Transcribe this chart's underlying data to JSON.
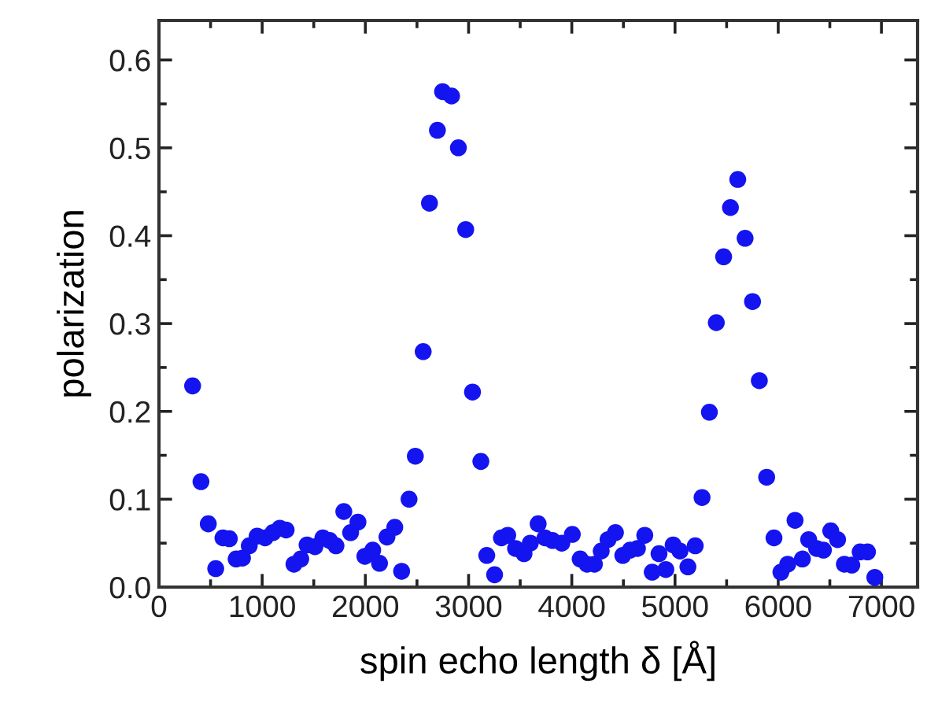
{
  "chart_data": {
    "type": "scatter",
    "xlabel": "spin echo length δ [Å]",
    "ylabel": "polarization",
    "x": [
      326,
      407,
      478,
      550,
      620,
      682,
      748,
      809,
      875,
      951,
      1028,
      1104,
      1171,
      1232,
      1308,
      1374,
      1435,
      1511,
      1588,
      1654,
      1715,
      1791,
      1857,
      1928,
      1995,
      2071,
      2137,
      2209,
      2285,
      2351,
      2423,
      2484,
      2560,
      2621,
      2698,
      2748,
      2835,
      2901,
      2972,
      3038,
      3119,
      3176,
      3252,
      3318,
      3379,
      3455,
      3537,
      3598,
      3674,
      3740,
      3812,
      3903,
      4005,
      4081,
      4148,
      4219,
      4285,
      4351,
      4423,
      4494,
      4565,
      4636,
      4707,
      4779,
      4845,
      4911,
      4982,
      5048,
      5125,
      5196,
      5262,
      5333,
      5400,
      5471,
      5537,
      5608,
      5679,
      5751,
      5817,
      5888,
      5959,
      6026,
      6092,
      6163,
      6234,
      6295,
      6372,
      6438,
      6509,
      6575,
      6641,
      6713,
      6794,
      6865,
      6936
    ],
    "series": [
      {
        "color": "#1414f0",
        "values": [
          0.229,
          0.12,
          0.072,
          0.021,
          0.056,
          0.055,
          0.032,
          0.033,
          0.047,
          0.058,
          0.056,
          0.062,
          0.067,
          0.065,
          0.026,
          0.032,
          0.048,
          0.046,
          0.056,
          0.053,
          0.047,
          0.086,
          0.062,
          0.074,
          0.035,
          0.042,
          0.027,
          0.057,
          0.068,
          0.018,
          0.1,
          0.149,
          0.268,
          0.437,
          0.52,
          0.564,
          0.559,
          0.5,
          0.407,
          0.222,
          0.143,
          0.036,
          0.014,
          0.056,
          0.059,
          0.044,
          0.038,
          0.05,
          0.072,
          0.056,
          0.053,
          0.05,
          0.06,
          0.032,
          0.026,
          0.026,
          0.041,
          0.054,
          0.062,
          0.036,
          0.042,
          0.044,
          0.059,
          0.017,
          0.038,
          0.02,
          0.048,
          0.041,
          0.023,
          0.047,
          0.102,
          0.199,
          0.301,
          0.376,
          0.432,
          0.464,
          0.397,
          0.325,
          0.235,
          0.125,
          0.056,
          0.017,
          0.026,
          0.076,
          0.032,
          0.054,
          0.044,
          0.042,
          0.064,
          0.054,
          0.026,
          0.025,
          0.04,
          0.04,
          0.011
        ]
      }
    ],
    "xlim": [
      0,
      7350
    ],
    "ylim": [
      0,
      0.645
    ],
    "xticks": [
      0,
      1000,
      2000,
      3000,
      4000,
      5000,
      6000,
      7000
    ],
    "yticks": [
      {
        "value": 0,
        "label": "0.0"
      },
      {
        "value": 0.1,
        "label": "0.1"
      },
      {
        "value": 0.2,
        "label": "0.2"
      },
      {
        "value": 0.3,
        "label": "0.3"
      },
      {
        "value": 0.4,
        "label": "0.4"
      },
      {
        "value": 0.5,
        "label": "0.5"
      },
      {
        "value": 0.6,
        "label": "0.6"
      }
    ],
    "marker": "circle",
    "grid": false,
    "legend": false
  }
}
